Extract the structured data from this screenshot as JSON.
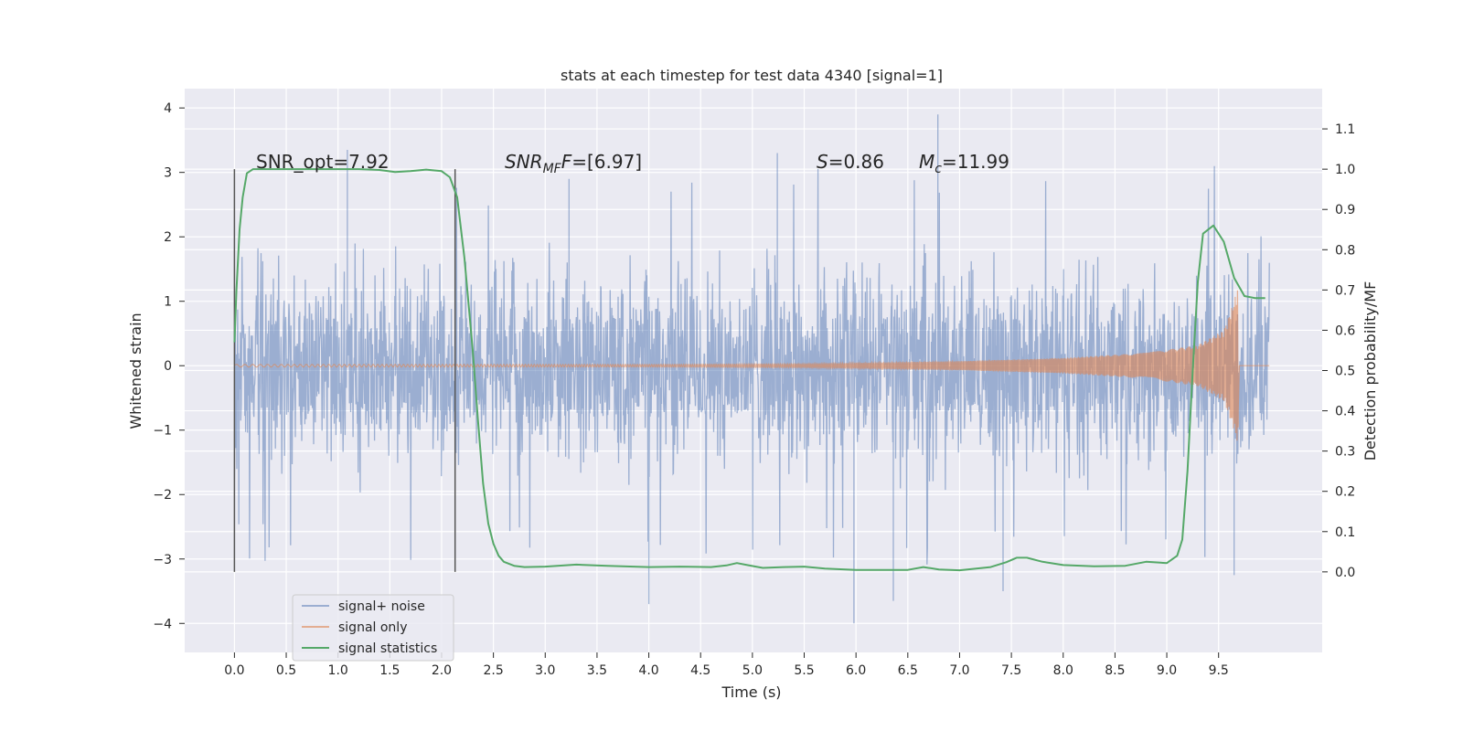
{
  "chart_data": {
    "type": "line",
    "title": "stats at each timestep for test data 4340 [signal=1]",
    "xlabel": "Time (s)",
    "ylabel": "Whitened strain",
    "y2label": "Detection probability/MF",
    "xlim": [
      -0.48,
      10.5
    ],
    "ylim": [
      -4.45,
      4.3
    ],
    "y2lim": [
      -0.2,
      1.2
    ],
    "grid": true,
    "legend_position": "lower-left",
    "xticks": [
      "0.0",
      "0.5",
      "1.0",
      "1.5",
      "2.0",
      "2.5",
      "3.0",
      "3.5",
      "4.0",
      "4.5",
      "5.0",
      "5.5",
      "6.0",
      "6.5",
      "7.0",
      "7.5",
      "8.0",
      "8.5",
      "9.0",
      "9.5"
    ],
    "yticks": [
      "4",
      "3",
      "2",
      "1",
      "0",
      "−1",
      "−2",
      "−3",
      "−4"
    ],
    "y2ticks": [
      "1.1",
      "1.0",
      "0.9",
      "0.8",
      "0.7",
      "0.6",
      "0.5",
      "0.4",
      "0.3",
      "0.2",
      "0.1",
      "0.0"
    ],
    "annotations": {
      "snr_opt": "SNR_opt=7.92",
      "snr_mf_main": "SNR",
      "snr_mf_sub": "MF",
      "snr_mf_value": "=[6.97]",
      "s_label": "S",
      "s_value": "=0.86",
      "mc_main": "M",
      "mc_sub": "c",
      "mc_value": "=11.99"
    },
    "window_markers_x": [
      0.0,
      2.13
    ],
    "series": [
      {
        "name": "signal+ noise",
        "color": "#4c72b0",
        "axis": "left",
        "x_range": [
          0.0,
          9.99
        ],
        "typical_amplitude": 1.2,
        "peaks": [
          [
            1.09,
            3.35
          ],
          [
            3.23,
            2.9
          ],
          [
            5.24,
            3.3
          ],
          [
            6.79,
            3.9
          ],
          [
            5.98,
            -4.0
          ],
          [
            4.0,
            -3.7
          ],
          [
            6.36,
            -3.65
          ],
          [
            7.42,
            -3.5
          ],
          [
            9.65,
            -3.25
          ]
        ]
      },
      {
        "name": "signal only",
        "color": "#dd8452",
        "axis": "left",
        "envelope": [
          [
            0.0,
            0.02
          ],
          [
            4.0,
            0.02
          ],
          [
            5.5,
            0.03
          ],
          [
            7.0,
            0.07
          ],
          [
            8.0,
            0.12
          ],
          [
            8.8,
            0.2
          ],
          [
            9.3,
            0.32
          ],
          [
            9.55,
            0.55
          ],
          [
            9.65,
            1.0
          ],
          [
            9.68,
            1.2
          ]
        ],
        "end_x": 9.69
      },
      {
        "name": "signal statistics",
        "color": "#55a868",
        "axis": "right",
        "x": [
          0.0,
          0.02,
          0.05,
          0.08,
          0.12,
          0.18,
          0.25,
          0.35,
          0.5,
          0.8,
          1.0,
          1.2,
          1.4,
          1.55,
          1.7,
          1.85,
          2.0,
          2.08,
          2.15,
          2.22,
          2.3,
          2.35,
          2.4,
          2.45,
          2.5,
          2.55,
          2.6,
          2.7,
          2.8,
          3.0,
          3.3,
          3.6,
          4.0,
          4.3,
          4.6,
          4.75,
          4.85,
          4.95,
          5.1,
          5.3,
          5.5,
          5.7,
          6.0,
          6.3,
          6.5,
          6.65,
          6.8,
          7.0,
          7.3,
          7.45,
          7.55,
          7.65,
          7.8,
          8.0,
          8.3,
          8.6,
          8.8,
          9.0,
          9.1,
          9.15,
          9.2,
          9.25,
          9.3,
          9.35,
          9.45,
          9.55,
          9.65,
          9.75,
          9.85,
          9.95
        ],
        "y": [
          0.57,
          0.7,
          0.85,
          0.93,
          0.99,
          1.0,
          1.0,
          1.0,
          1.0,
          1.0,
          1.0,
          1.0,
          0.998,
          0.993,
          0.995,
          0.999,
          0.995,
          0.98,
          0.93,
          0.78,
          0.55,
          0.38,
          0.22,
          0.12,
          0.07,
          0.04,
          0.025,
          0.015,
          0.012,
          0.013,
          0.018,
          0.015,
          0.012,
          0.013,
          0.012,
          0.016,
          0.022,
          0.017,
          0.01,
          0.012,
          0.013,
          0.008,
          0.005,
          0.005,
          0.005,
          0.012,
          0.006,
          0.004,
          0.012,
          0.024,
          0.035,
          0.035,
          0.025,
          0.017,
          0.014,
          0.015,
          0.025,
          0.022,
          0.04,
          0.08,
          0.25,
          0.5,
          0.72,
          0.84,
          0.86,
          0.82,
          0.73,
          0.685,
          0.68,
          0.68
        ]
      }
    ]
  }
}
